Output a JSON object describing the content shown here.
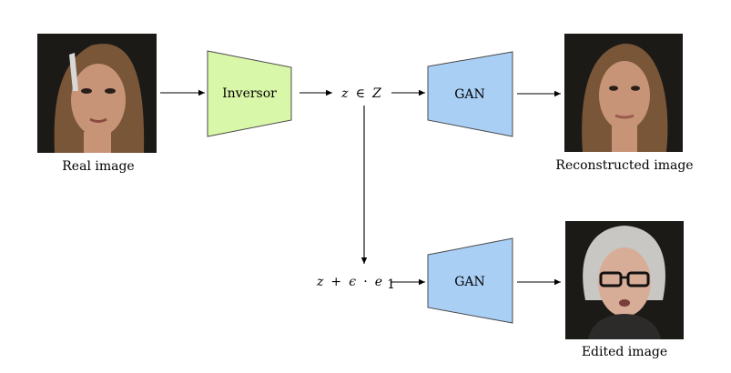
{
  "photos": {
    "real": {
      "caption": "Real image"
    },
    "reconstructed": {
      "caption": "Reconstructed image"
    },
    "edited": {
      "caption": "Edited image"
    }
  },
  "blocks": {
    "inversor": {
      "label": "Inversor",
      "fill": "#d9f7a8",
      "stroke": "#4a4a4a"
    },
    "gan_top": {
      "label": "GAN",
      "fill": "#a9cff5",
      "stroke": "#4a4a4a"
    },
    "gan_bottom": {
      "label": "GAN",
      "fill": "#a9cff5",
      "stroke": "#4a4a4a"
    }
  },
  "math": {
    "latent": {
      "z": "z",
      "in": "∈",
      "Z": "Z"
    },
    "edited_latent": {
      "z": "z",
      "plus": "+",
      "eps": "ϵ",
      "dot": "·",
      "e": "e",
      "sub": "1"
    }
  },
  "colors": {
    "photo_bg": "#1c1a17",
    "skin_young": "#c89478",
    "hair_young": "#7a5638",
    "skin_old": "#d7ad98",
    "hair_old": "#c9c7c4"
  }
}
